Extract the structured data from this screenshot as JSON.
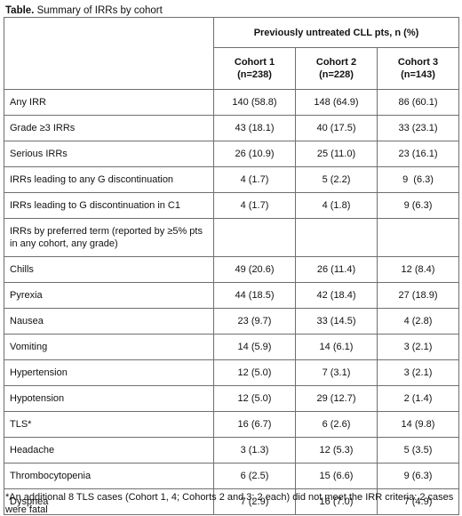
{
  "caption": {
    "label": "Table.",
    "text": "Summary of IRRs by cohort"
  },
  "header": {
    "span_label": "Previously untreated CLL pts, n (%)",
    "cohorts": [
      {
        "name": "Cohort 1",
        "n": "(n=238)"
      },
      {
        "name": "Cohort 2",
        "n": "(n=228)"
      },
      {
        "name": "Cohort 3",
        "n": "(n=143)"
      }
    ]
  },
  "rows": [
    {
      "label": "Any IRR",
      "values": [
        "140 (58.8)",
        "148 (64.9)",
        "86 (60.1)"
      ]
    },
    {
      "label": "Grade ≥3 IRRs",
      "values": [
        "43 (18.1)",
        "40 (17.5)",
        "33 (23.1)"
      ]
    },
    {
      "label": "Serious IRRs",
      "values": [
        "26 (10.9)",
        "25 (11.0)",
        "23 (16.1)"
      ]
    },
    {
      "label": "IRRs leading to any G discontinuation",
      "values": [
        "4 (1.7)",
        "5 (2.2)",
        "9  (6.3)"
      ]
    },
    {
      "label": "IRRs leading to G discontinuation in C1",
      "values": [
        "4 (1.7)",
        "4 (1.8)",
        "9 (6.3)"
      ]
    }
  ],
  "term_section": {
    "label": "IRRs by preferred term (reported by ≥5% pts in any cohort, any grade)",
    "terms": [
      {
        "label": "Chills",
        "values": [
          "49 (20.6)",
          "26 (11.4)",
          "12 (8.4)"
        ]
      },
      {
        "label": "Pyrexia",
        "values": [
          "44 (18.5)",
          "42 (18.4)",
          "27 (18.9)"
        ]
      },
      {
        "label": "Nausea",
        "values": [
          "23 (9.7)",
          "33 (14.5)",
          "4 (2.8)"
        ]
      },
      {
        "label": "Vomiting",
        "values": [
          "14 (5.9)",
          "14 (6.1)",
          "3 (2.1)"
        ]
      },
      {
        "label": "Hypertension",
        "values": [
          "12 (5.0)",
          "7 (3.1)",
          "3 (2.1)"
        ]
      },
      {
        "label": "Hypotension",
        "values": [
          "12 (5.0)",
          "29 (12.7)",
          "2 (1.4)"
        ]
      },
      {
        "label": "TLS*",
        "values": [
          "16 (6.7)",
          "6 (2.6)",
          "14 (9.8)"
        ]
      },
      {
        "label": "Headache",
        "values": [
          "3 (1.3)",
          "12 (5.3)",
          "5 (3.5)"
        ]
      },
      {
        "label": "Thrombocytopenia",
        "values": [
          "6 (2.5)",
          "15 (6.6)",
          "9 (6.3)"
        ]
      },
      {
        "label": "Dyspnea",
        "values": [
          "7 (2.9)",
          "16 (7.0)",
          "7 (4.9)"
        ]
      }
    ]
  },
  "footnote": "*An additional 8 TLS cases (Cohort 1, 4; Cohorts 2 and 3; 2 each) did not meet the IRR criteria: 2 cases were fatal"
}
